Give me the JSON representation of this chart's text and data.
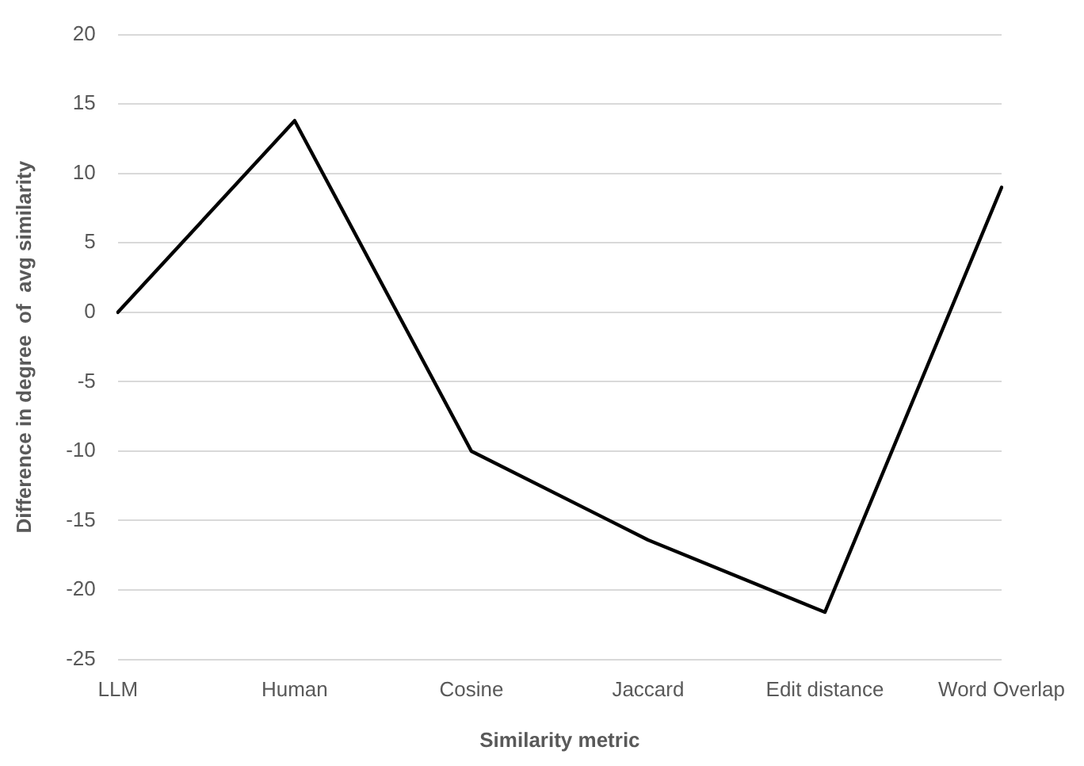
{
  "chart_data": {
    "type": "line",
    "xlabel": "Similarity metric",
    "ylabel": "Difference in degree  of  avg similarity",
    "categories": [
      "LLM",
      "Human",
      "Cosine",
      "Jaccard",
      "Edit distance",
      "Word Overlap"
    ],
    "series": [
      {
        "color": "#000000",
        "values": [
          0,
          13.8,
          -10,
          -16.4,
          -21.6,
          9
        ]
      }
    ],
    "ylim": [
      -25,
      20
    ],
    "yticks": [
      -25,
      -20,
      -15,
      -10,
      -5,
      0,
      5,
      10,
      15,
      20
    ],
    "grid": "y",
    "marker": "none",
    "line_style": "solid"
  }
}
